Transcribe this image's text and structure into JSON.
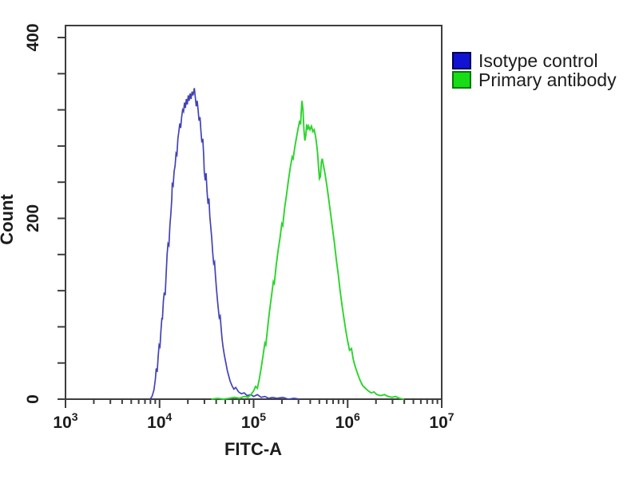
{
  "legend": {
    "items": [
      {
        "label": "Isotype control",
        "swatch_fill": "#1212d2",
        "swatch_border": "#000050"
      },
      {
        "label": "Primary antibody",
        "swatch_fill": "#17dd17",
        "swatch_border": "#067806"
      }
    ]
  },
  "colors": {
    "frame": "#3d3d3d",
    "text": "#1c1c1c",
    "background": "#ffffff"
  },
  "chart_data": {
    "type": "line",
    "subtype": "flow-cytometry-histogram",
    "title": "",
    "xlabel": "FITC-A",
    "ylabel": "Count",
    "x_scale": "log10",
    "x_log_range": [
      3,
      7
    ],
    "x_decades": [
      3,
      4,
      5,
      6,
      7
    ],
    "x_decade_labels": [
      "10^3",
      "10^4",
      "10^5",
      "10^6",
      "10^7"
    ],
    "ylim": [
      0,
      400
    ],
    "y_tick_step": 40,
    "y_labeled_ticks": [
      0,
      200,
      400
    ],
    "grid": false,
    "legend_position": "top-right-outside",
    "series": [
      {
        "name": "Isotype control",
        "color": "#4242b6",
        "stroke_width": 1.7,
        "peak_x": 23000,
        "peak_count": 344,
        "points": [
          [
            3.9,
            0
          ],
          [
            3.92,
            3
          ],
          [
            3.94,
            10
          ],
          [
            3.955,
            22
          ],
          [
            3.965,
            34
          ],
          [
            3.975,
            30
          ],
          [
            3.985,
            47
          ],
          [
            3.995,
            60
          ],
          [
            4.005,
            58
          ],
          [
            4.015,
            76
          ],
          [
            4.025,
            90
          ],
          [
            4.03,
            88
          ],
          [
            4.04,
            108
          ],
          [
            4.05,
            118
          ],
          [
            4.06,
            115
          ],
          [
            4.07,
            138
          ],
          [
            4.08,
            160
          ],
          [
            4.09,
            172
          ],
          [
            4.1,
            170
          ],
          [
            4.11,
            192
          ],
          [
            4.12,
            205
          ],
          [
            4.13,
            222
          ],
          [
            4.135,
            238
          ],
          [
            4.145,
            236
          ],
          [
            4.155,
            252
          ],
          [
            4.165,
            258
          ],
          [
            4.175,
            272
          ],
          [
            4.185,
            270
          ],
          [
            4.195,
            288
          ],
          [
            4.205,
            296
          ],
          [
            4.215,
            305
          ],
          [
            4.225,
            300
          ],
          [
            4.235,
            312
          ],
          [
            4.245,
            320
          ],
          [
            4.255,
            318
          ],
          [
            4.265,
            328
          ],
          [
            4.275,
            322
          ],
          [
            4.285,
            332
          ],
          [
            4.295,
            326
          ],
          [
            4.305,
            336
          ],
          [
            4.315,
            330
          ],
          [
            4.325,
            338
          ],
          [
            4.335,
            332
          ],
          [
            4.345,
            340
          ],
          [
            4.355,
            336
          ],
          [
            4.37,
            344
          ],
          [
            4.38,
            334
          ],
          [
            4.39,
            324
          ],
          [
            4.4,
            330
          ],
          [
            4.41,
            320
          ],
          [
            4.42,
            308
          ],
          [
            4.43,
            312
          ],
          [
            4.44,
            296
          ],
          [
            4.45,
            284
          ],
          [
            4.46,
            288
          ],
          [
            4.47,
            268
          ],
          [
            4.475,
            252
          ],
          [
            4.485,
            242
          ],
          [
            4.495,
            250
          ],
          [
            4.505,
            230
          ],
          [
            4.515,
            216
          ],
          [
            4.525,
            222
          ],
          [
            4.535,
            202
          ],
          [
            4.545,
            190
          ],
          [
            4.555,
            178
          ],
          [
            4.565,
            162
          ],
          [
            4.575,
            150
          ],
          [
            4.585,
            152
          ],
          [
            4.595,
            136
          ],
          [
            4.605,
            122
          ],
          [
            4.615,
            110
          ],
          [
            4.625,
            100
          ],
          [
            4.635,
            90
          ],
          [
            4.645,
            92
          ],
          [
            4.655,
            78
          ],
          [
            4.665,
            66
          ],
          [
            4.675,
            58
          ],
          [
            4.69,
            48
          ],
          [
            4.705,
            40
          ],
          [
            4.72,
            32
          ],
          [
            4.735,
            26
          ],
          [
            4.75,
            20
          ],
          [
            4.77,
            15
          ],
          [
            4.79,
            11
          ],
          [
            4.81,
            13
          ],
          [
            4.84,
            8
          ],
          [
            4.87,
            6
          ],
          [
            4.9,
            7
          ],
          [
            4.93,
            4
          ],
          [
            4.97,
            5
          ],
          [
            5.0,
            3
          ],
          [
            5.04,
            5
          ],
          [
            5.08,
            2
          ],
          [
            5.12,
            3
          ],
          [
            5.16,
            1
          ],
          [
            5.2,
            2
          ],
          [
            5.25,
            1
          ],
          [
            5.31,
            2
          ],
          [
            5.37,
            0
          ],
          [
            5.43,
            1
          ],
          [
            5.49,
            0
          ]
        ]
      },
      {
        "name": "Primary antibody",
        "color": "#2bd42b",
        "stroke_width": 1.9,
        "peak_x": 330000,
        "peak_count": 330,
        "points": [
          [
            4.55,
            0
          ],
          [
            4.62,
            1
          ],
          [
            4.68,
            0
          ],
          [
            4.74,
            1
          ],
          [
            4.8,
            2
          ],
          [
            4.85,
            1
          ],
          [
            4.9,
            3
          ],
          [
            4.94,
            2
          ],
          [
            4.97,
            5
          ],
          [
            5.0,
            9
          ],
          [
            5.02,
            14
          ],
          [
            5.04,
            12
          ],
          [
            5.06,
            22
          ],
          [
            5.08,
            34
          ],
          [
            5.1,
            48
          ],
          [
            5.12,
            62
          ],
          [
            5.13,
            60
          ],
          [
            5.15,
            80
          ],
          [
            5.17,
            98
          ],
          [
            5.19,
            114
          ],
          [
            5.21,
            130
          ],
          [
            5.22,
            128
          ],
          [
            5.24,
            148
          ],
          [
            5.26,
            164
          ],
          [
            5.28,
            178
          ],
          [
            5.3,
            194
          ],
          [
            5.31,
            192
          ],
          [
            5.33,
            212
          ],
          [
            5.35,
            226
          ],
          [
            5.37,
            242
          ],
          [
            5.39,
            256
          ],
          [
            5.41,
            268
          ],
          [
            5.42,
            266
          ],
          [
            5.44,
            280
          ],
          [
            5.46,
            292
          ],
          [
            5.475,
            300
          ],
          [
            5.49,
            308
          ],
          [
            5.5,
            304
          ],
          [
            5.505,
            316
          ],
          [
            5.515,
            330
          ],
          [
            5.525,
            320
          ],
          [
            5.535,
            298
          ],
          [
            5.545,
            286
          ],
          [
            5.555,
            292
          ],
          [
            5.565,
            304
          ],
          [
            5.575,
            298
          ],
          [
            5.585,
            302
          ],
          [
            5.6,
            298
          ],
          [
            5.615,
            302
          ],
          [
            5.63,
            296
          ],
          [
            5.645,
            298
          ],
          [
            5.66,
            290
          ],
          [
            5.67,
            282
          ],
          [
            5.68,
            272
          ],
          [
            5.69,
            258
          ],
          [
            5.7,
            244
          ],
          [
            5.71,
            246
          ],
          [
            5.72,
            262
          ],
          [
            5.73,
            266
          ],
          [
            5.74,
            260
          ],
          [
            5.755,
            252
          ],
          [
            5.77,
            242
          ],
          [
            5.785,
            232
          ],
          [
            5.8,
            220
          ],
          [
            5.82,
            204
          ],
          [
            5.84,
            188
          ],
          [
            5.86,
            172
          ],
          [
            5.88,
            154
          ],
          [
            5.9,
            138
          ],
          [
            5.92,
            120
          ],
          [
            5.94,
            104
          ],
          [
            5.96,
            90
          ],
          [
            5.98,
            76
          ],
          [
            6.0,
            64
          ],
          [
            6.02,
            54
          ],
          [
            6.04,
            56
          ],
          [
            6.06,
            44
          ],
          [
            6.08,
            36
          ],
          [
            6.1,
            30
          ],
          [
            6.12,
            24
          ],
          [
            6.14,
            19
          ],
          [
            6.16,
            15
          ],
          [
            6.19,
            12
          ],
          [
            6.22,
            9
          ],
          [
            6.25,
            7
          ],
          [
            6.28,
            8
          ],
          [
            6.31,
            5
          ],
          [
            6.35,
            4
          ],
          [
            6.39,
            5
          ],
          [
            6.43,
            3
          ],
          [
            6.47,
            2
          ],
          [
            6.51,
            3
          ],
          [
            6.55,
            1
          ],
          [
            6.6,
            0
          ]
        ]
      }
    ]
  }
}
